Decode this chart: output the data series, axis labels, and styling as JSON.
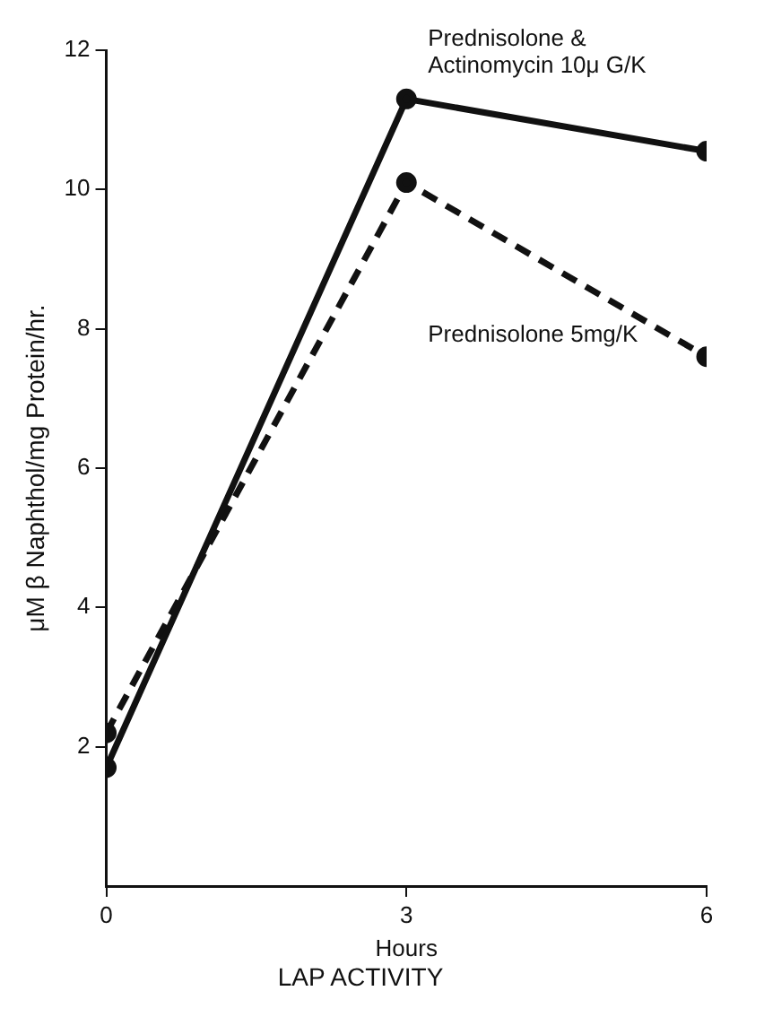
{
  "chart_data": {
    "type": "line",
    "title": "LAP ACTIVITY",
    "xlabel": "Hours",
    "ylabel": "μM β Naphthol/mg Protein/hr.",
    "x": [
      0,
      3,
      6
    ],
    "xlim": [
      0,
      6
    ],
    "xticks": [
      0,
      3,
      6
    ],
    "ylim": [
      0,
      12
    ],
    "yticks": [
      2,
      4,
      6,
      8,
      10,
      12
    ],
    "grid": false,
    "legend": false,
    "marker": "circle",
    "series": [
      {
        "name": "Prednisolone & Actinomycin 10μ G/K",
        "color": "#111111",
        "values": [
          1.7,
          11.3,
          10.55
        ],
        "line_style": "solid"
      },
      {
        "name": "Prednisolone 5mg/K",
        "color": "#111111",
        "values": [
          2.2,
          10.1,
          7.6
        ],
        "line_style": "dashed"
      }
    ]
  }
}
